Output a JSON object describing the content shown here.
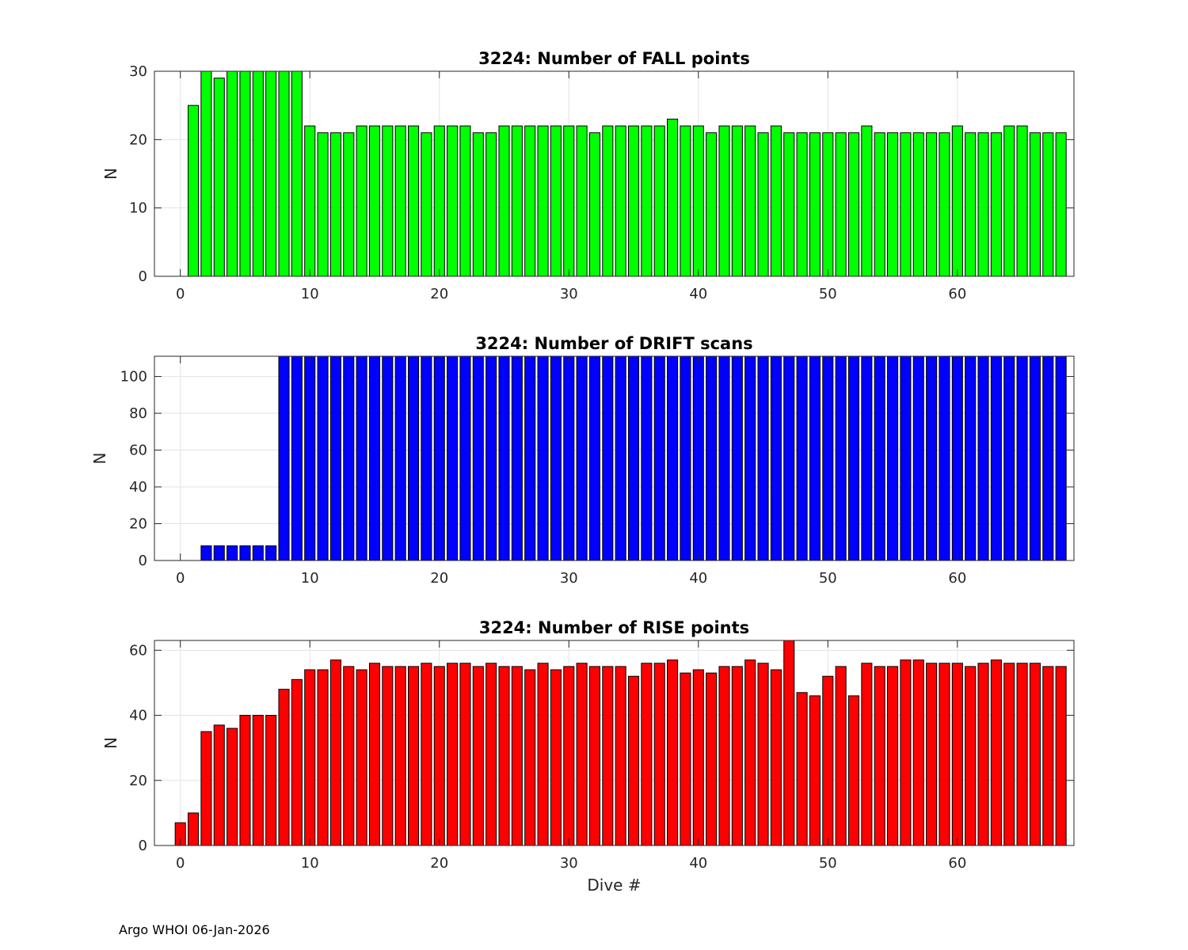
{
  "footer": "Argo WHOI 06-Jan-2026",
  "chart_data": [
    {
      "type": "bar",
      "title": "3224: Number of FALL points",
      "xlabel": "",
      "ylabel": "N",
      "color": "#00ff00",
      "xlim": [
        -2,
        69
      ],
      "ylim": [
        0,
        30
      ],
      "xticks": [
        0,
        10,
        20,
        30,
        40,
        50,
        60
      ],
      "yticks": [
        0,
        10,
        20,
        30
      ],
      "grid": true,
      "x": [
        1,
        2,
        3,
        4,
        5,
        6,
        7,
        8,
        9,
        10,
        11,
        12,
        13,
        14,
        15,
        16,
        17,
        18,
        19,
        20,
        21,
        22,
        23,
        24,
        25,
        26,
        27,
        28,
        29,
        30,
        31,
        32,
        33,
        34,
        35,
        36,
        37,
        38,
        39,
        40,
        41,
        42,
        43,
        44,
        45,
        46,
        47,
        48,
        49,
        50,
        51,
        52,
        53,
        54,
        55,
        56,
        57,
        58,
        59,
        60,
        61,
        62,
        63,
        64,
        65,
        66,
        67,
        68
      ],
      "values": [
        25,
        30,
        29,
        30,
        30,
        30,
        30,
        30,
        30,
        22,
        21,
        21,
        21,
        22,
        22,
        22,
        22,
        22,
        21,
        22,
        22,
        22,
        21,
        21,
        22,
        22,
        22,
        22,
        22,
        22,
        22,
        21,
        22,
        22,
        22,
        22,
        22,
        23,
        22,
        22,
        21,
        22,
        22,
        22,
        21,
        22,
        21,
        21,
        21,
        21,
        21,
        21,
        22,
        21,
        21,
        21,
        21,
        21,
        21,
        22,
        21,
        21,
        21,
        22,
        22,
        21,
        21,
        21
      ]
    },
    {
      "type": "bar",
      "title": "3224: Number of DRIFT scans",
      "xlabel": "",
      "ylabel": "N",
      "color": "#0000ff",
      "xlim": [
        -2,
        69
      ],
      "ylim": [
        0,
        111
      ],
      "xticks": [
        0,
        10,
        20,
        30,
        40,
        50,
        60
      ],
      "yticks": [
        0,
        20,
        40,
        60,
        80,
        100
      ],
      "grid": true,
      "x": [
        -1,
        0,
        1,
        2,
        3,
        4,
        5,
        6,
        7,
        8,
        9,
        10,
        11,
        12,
        13,
        14,
        15,
        16,
        17,
        18,
        19,
        20,
        21,
        22,
        23,
        24,
        25,
        26,
        27,
        28,
        29,
        30,
        31,
        32,
        33,
        34,
        35,
        36,
        37,
        38,
        39,
        40,
        41,
        42,
        43,
        44,
        45,
        46,
        47,
        48,
        49,
        50,
        51,
        52,
        53,
        54,
        55,
        56,
        57,
        58,
        59,
        60,
        61,
        62,
        63,
        64,
        65,
        66,
        67,
        68
      ],
      "values": [
        0,
        0,
        0,
        8,
        8,
        8,
        8,
        8,
        8,
        111,
        111,
        111,
        111,
        111,
        111,
        111,
        111,
        111,
        111,
        111,
        111,
        111,
        111,
        111,
        111,
        111,
        111,
        111,
        111,
        111,
        111,
        111,
        111,
        111,
        111,
        111,
        111,
        111,
        111,
        111,
        111,
        111,
        111,
        111,
        111,
        111,
        111,
        111,
        111,
        111,
        111,
        111,
        111,
        111,
        111,
        111,
        111,
        111,
        111,
        111,
        111,
        111,
        111,
        111,
        111,
        111,
        111,
        111,
        111,
        111
      ],
      "note_clipped": "bars from dive 8 onward extend above the visible axis limit"
    },
    {
      "type": "bar",
      "title": "3224: Number of RISE points",
      "xlabel": "Dive #",
      "ylabel": "N",
      "color": "#ff0000",
      "xlim": [
        -2,
        69
      ],
      "ylim": [
        0,
        63
      ],
      "xticks": [
        0,
        10,
        20,
        30,
        40,
        50,
        60
      ],
      "yticks": [
        0,
        20,
        40,
        60
      ],
      "grid": true,
      "x": [
        0,
        1,
        2,
        3,
        4,
        5,
        6,
        7,
        8,
        9,
        10,
        11,
        12,
        13,
        14,
        15,
        16,
        17,
        18,
        19,
        20,
        21,
        22,
        23,
        24,
        25,
        26,
        27,
        28,
        29,
        30,
        31,
        32,
        33,
        34,
        35,
        36,
        37,
        38,
        39,
        40,
        41,
        42,
        43,
        44,
        45,
        46,
        47,
        48,
        49,
        50,
        51,
        52,
        53,
        54,
        55,
        56,
        57,
        58,
        59,
        60,
        61,
        62,
        63,
        64,
        65,
        66,
        67,
        68
      ],
      "values": [
        7,
        10,
        35,
        37,
        36,
        40,
        40,
        40,
        48,
        51,
        54,
        54,
        57,
        55,
        54,
        56,
        55,
        55,
        55,
        56,
        55,
        56,
        56,
        55,
        56,
        55,
        55,
        54,
        56,
        54,
        55,
        56,
        55,
        55,
        55,
        52,
        56,
        56,
        57,
        53,
        54,
        53,
        55,
        55,
        57,
        56,
        54,
        63,
        47,
        46,
        52,
        55,
        46,
        56,
        55,
        55,
        57,
        57,
        56,
        56,
        56,
        55,
        56,
        57,
        56,
        56,
        56,
        55,
        55
      ]
    }
  ]
}
